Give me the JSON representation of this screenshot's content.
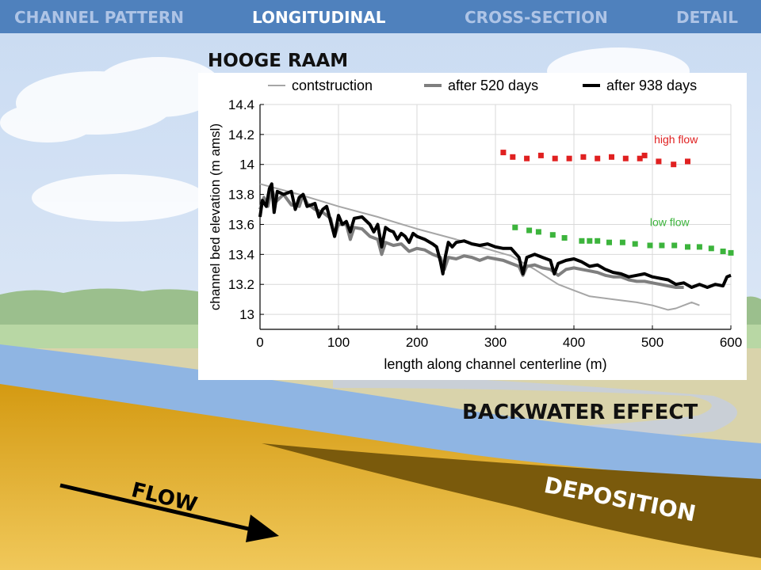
{
  "nav": {
    "tabs": [
      {
        "label": "CHANNEL PATTERN",
        "active": false
      },
      {
        "label": "LONGITUDINAL",
        "active": true
      },
      {
        "label": "CROSS-SECTION",
        "active": false
      },
      {
        "label": "DETAIL",
        "active": false
      }
    ]
  },
  "colors": {
    "nav_bar": "#4f81bd",
    "nav_inactive": "#aec4e6",
    "nav_active": "#ffffff",
    "sky": "#dbe7f7",
    "water": "#8fb5e3",
    "sediment": "#d4a017",
    "deposition": "#7a5a0c",
    "high_flow_marker": "#e02020",
    "low_flow_marker": "#3cb43c"
  },
  "chart_data": {
    "type": "line",
    "title": "HOOGE RAAM",
    "xlabel": "length along channel centerline (m)",
    "ylabel": "channel bed elevation (m amsl)",
    "xlim": [
      0,
      600
    ],
    "ylim": [
      12.9,
      14.4
    ],
    "xticks": [
      "0",
      "100",
      "200",
      "300",
      "400",
      "500",
      "600"
    ],
    "yticks": [
      "13",
      "13.2",
      "13.4",
      "13.6",
      "13.8",
      "14",
      "14.2",
      "14.4"
    ],
    "grid": true,
    "legend_position": "top",
    "series": [
      {
        "name": "contstruction",
        "color": "#a6a6a6",
        "width": "thin",
        "points": [
          [
            0,
            13.87
          ],
          [
            50,
            13.8
          ],
          [
            100,
            13.72
          ],
          [
            150,
            13.65
          ],
          [
            200,
            13.57
          ],
          [
            250,
            13.5
          ],
          [
            300,
            13.42
          ],
          [
            320,
            13.39
          ],
          [
            350,
            13.3
          ],
          [
            380,
            13.2
          ],
          [
            400,
            13.16
          ],
          [
            420,
            13.12
          ],
          [
            450,
            13.1
          ],
          [
            480,
            13.08
          ],
          [
            500,
            13.06
          ],
          [
            520,
            13.03
          ],
          [
            530,
            13.04
          ],
          [
            540,
            13.06
          ],
          [
            550,
            13.08
          ],
          [
            560,
            13.06
          ]
        ]
      },
      {
        "name": "after 520 days",
        "color": "#7f7f7f",
        "width": "medium",
        "points": [
          [
            0,
            13.7
          ],
          [
            5,
            13.78
          ],
          [
            10,
            13.72
          ],
          [
            15,
            13.84
          ],
          [
            20,
            13.75
          ],
          [
            30,
            13.8
          ],
          [
            40,
            13.73
          ],
          [
            50,
            13.72
          ],
          [
            55,
            13.8
          ],
          [
            60,
            13.74
          ],
          [
            70,
            13.7
          ],
          [
            80,
            13.68
          ],
          [
            90,
            13.64
          ],
          [
            95,
            13.52
          ],
          [
            100,
            13.6
          ],
          [
            110,
            13.6
          ],
          [
            115,
            13.5
          ],
          [
            120,
            13.58
          ],
          [
            130,
            13.57
          ],
          [
            140,
            13.52
          ],
          [
            150,
            13.5
          ],
          [
            155,
            13.4
          ],
          [
            160,
            13.48
          ],
          [
            170,
            13.46
          ],
          [
            180,
            13.47
          ],
          [
            190,
            13.42
          ],
          [
            200,
            13.44
          ],
          [
            210,
            13.43
          ],
          [
            220,
            13.4
          ],
          [
            230,
            13.38
          ],
          [
            235,
            13.3
          ],
          [
            240,
            13.38
          ],
          [
            250,
            13.37
          ],
          [
            260,
            13.39
          ],
          [
            270,
            13.38
          ],
          [
            280,
            13.36
          ],
          [
            290,
            13.38
          ],
          [
            300,
            13.37
          ],
          [
            310,
            13.36
          ],
          [
            320,
            13.34
          ],
          [
            330,
            13.32
          ],
          [
            335,
            13.26
          ],
          [
            340,
            13.32
          ],
          [
            350,
            13.33
          ],
          [
            360,
            13.31
          ],
          [
            370,
            13.3
          ],
          [
            380,
            13.26
          ],
          [
            390,
            13.3
          ],
          [
            400,
            13.31
          ],
          [
            410,
            13.3
          ],
          [
            420,
            13.29
          ],
          [
            430,
            13.28
          ],
          [
            440,
            13.26
          ],
          [
            450,
            13.25
          ],
          [
            460,
            13.25
          ],
          [
            470,
            13.23
          ],
          [
            480,
            13.22
          ],
          [
            490,
            13.22
          ],
          [
            500,
            13.21
          ],
          [
            510,
            13.2
          ],
          [
            520,
            13.19
          ],
          [
            530,
            13.18
          ],
          [
            540,
            13.18
          ]
        ]
      },
      {
        "name": "after 938 days",
        "color": "#000000",
        "width": "thick",
        "points": [
          [
            0,
            13.65
          ],
          [
            3,
            13.76
          ],
          [
            8,
            13.72
          ],
          [
            12,
            13.84
          ],
          [
            15,
            13.87
          ],
          [
            18,
            13.68
          ],
          [
            22,
            13.82
          ],
          [
            30,
            13.8
          ],
          [
            40,
            13.82
          ],
          [
            45,
            13.7
          ],
          [
            50,
            13.78
          ],
          [
            55,
            13.8
          ],
          [
            60,
            13.72
          ],
          [
            70,
            13.74
          ],
          [
            75,
            13.65
          ],
          [
            80,
            13.7
          ],
          [
            85,
            13.72
          ],
          [
            90,
            13.62
          ],
          [
            95,
            13.52
          ],
          [
            100,
            13.66
          ],
          [
            105,
            13.6
          ],
          [
            110,
            13.62
          ],
          [
            115,
            13.55
          ],
          [
            120,
            13.64
          ],
          [
            130,
            13.65
          ],
          [
            140,
            13.6
          ],
          [
            145,
            13.55
          ],
          [
            150,
            13.6
          ],
          [
            155,
            13.45
          ],
          [
            160,
            13.58
          ],
          [
            165,
            13.56
          ],
          [
            170,
            13.55
          ],
          [
            175,
            13.5
          ],
          [
            180,
            13.54
          ],
          [
            185,
            13.52
          ],
          [
            190,
            13.48
          ],
          [
            195,
            13.54
          ],
          [
            200,
            13.52
          ],
          [
            210,
            13.5
          ],
          [
            220,
            13.47
          ],
          [
            225,
            13.45
          ],
          [
            230,
            13.35
          ],
          [
            233,
            13.27
          ],
          [
            236,
            13.38
          ],
          [
            240,
            13.48
          ],
          [
            245,
            13.45
          ],
          [
            250,
            13.48
          ],
          [
            260,
            13.49
          ],
          [
            270,
            13.47
          ],
          [
            280,
            13.46
          ],
          [
            290,
            13.47
          ],
          [
            300,
            13.45
          ],
          [
            310,
            13.44
          ],
          [
            320,
            13.44
          ],
          [
            330,
            13.38
          ],
          [
            335,
            13.27
          ],
          [
            340,
            13.38
          ],
          [
            350,
            13.4
          ],
          [
            360,
            13.38
          ],
          [
            370,
            13.36
          ],
          [
            375,
            13.27
          ],
          [
            380,
            13.34
          ],
          [
            390,
            13.36
          ],
          [
            400,
            13.37
          ],
          [
            410,
            13.35
          ],
          [
            420,
            13.32
          ],
          [
            430,
            13.33
          ],
          [
            440,
            13.3
          ],
          [
            450,
            13.28
          ],
          [
            460,
            13.27
          ],
          [
            470,
            13.25
          ],
          [
            480,
            13.26
          ],
          [
            490,
            13.27
          ],
          [
            500,
            13.25
          ],
          [
            510,
            13.24
          ],
          [
            520,
            13.23
          ],
          [
            530,
            13.2
          ],
          [
            540,
            13.21
          ],
          [
            550,
            13.18
          ],
          [
            560,
            13.2
          ],
          [
            570,
            13.18
          ],
          [
            580,
            13.2
          ],
          [
            590,
            13.19
          ],
          [
            595,
            13.25
          ],
          [
            600,
            13.26
          ]
        ]
      }
    ],
    "markers": [
      {
        "name": "high flow",
        "color": "#e02020",
        "points": [
          [
            310,
            14.08
          ],
          [
            322,
            14.05
          ],
          [
            340,
            14.04
          ],
          [
            358,
            14.06
          ],
          [
            376,
            14.04
          ],
          [
            394,
            14.04
          ],
          [
            412,
            14.05
          ],
          [
            430,
            14.04
          ],
          [
            448,
            14.05
          ],
          [
            466,
            14.04
          ],
          [
            484,
            14.04
          ],
          [
            490,
            14.06
          ],
          [
            508,
            14.02
          ],
          [
            527,
            14.0
          ],
          [
            545,
            14.02
          ]
        ]
      },
      {
        "name": "low flow",
        "color": "#3cb43c",
        "points": [
          [
            325,
            13.58
          ],
          [
            343,
            13.56
          ],
          [
            355,
            13.55
          ],
          [
            373,
            13.53
          ],
          [
            388,
            13.51
          ],
          [
            410,
            13.49
          ],
          [
            420,
            13.49
          ],
          [
            430,
            13.49
          ],
          [
            445,
            13.48
          ],
          [
            462,
            13.48
          ],
          [
            478,
            13.47
          ],
          [
            497,
            13.46
          ],
          [
            512,
            13.46
          ],
          [
            528,
            13.46
          ],
          [
            545,
            13.45
          ],
          [
            560,
            13.45
          ],
          [
            575,
            13.44
          ],
          [
            590,
            13.42
          ],
          [
            600,
            13.41
          ]
        ]
      }
    ],
    "annotations": [
      {
        "text": "high flow",
        "x": 530,
        "y": 14.14,
        "color": "#e02020"
      },
      {
        "text": "low flow",
        "x": 522,
        "y": 13.59,
        "color": "#3cb43c"
      }
    ]
  },
  "callouts": {
    "backwater": "BACKWATER EFFECT",
    "flow": "FLOW",
    "deposition": "DEPOSITION"
  }
}
